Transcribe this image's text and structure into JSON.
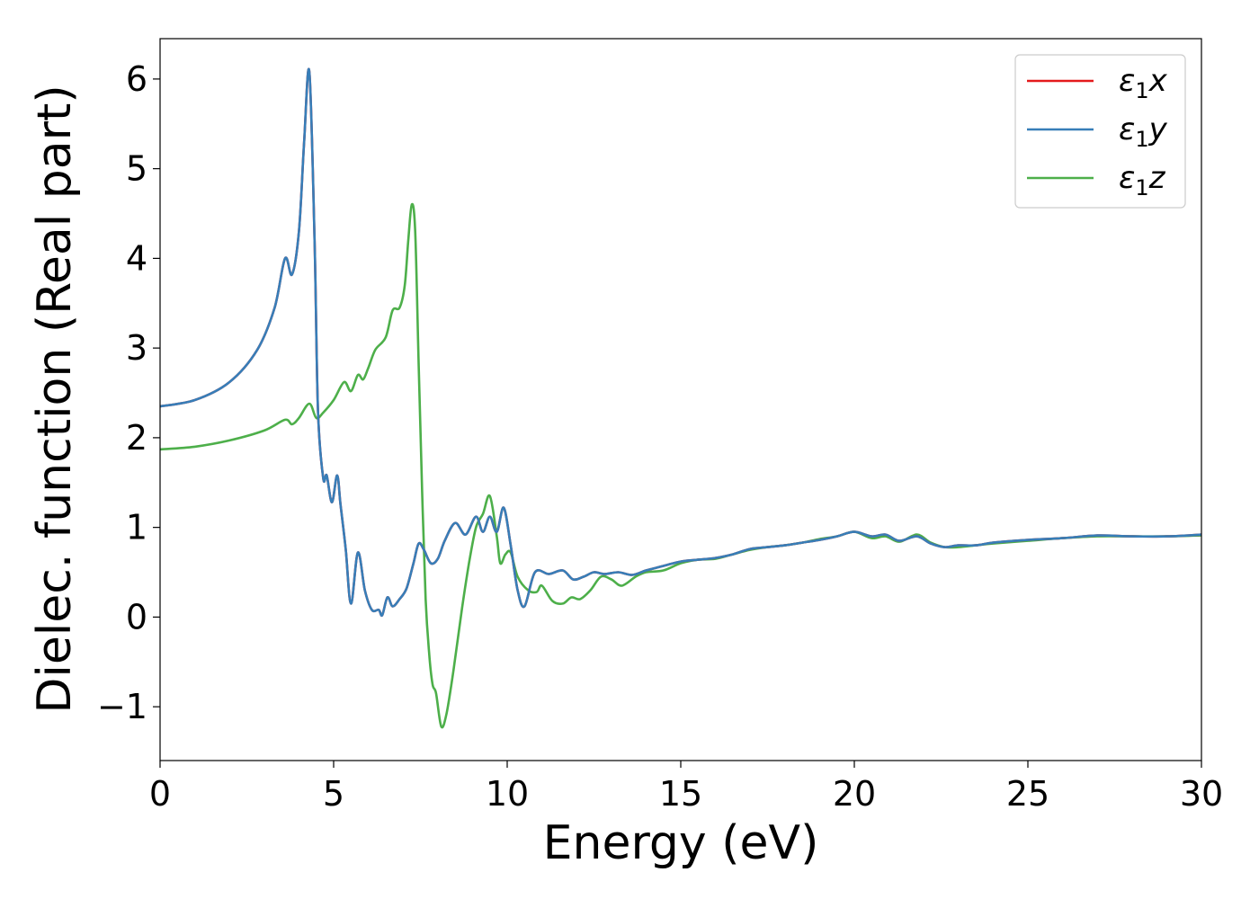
{
  "chart_data": {
    "type": "line",
    "title": "",
    "xlabel": "Energy (eV)",
    "ylabel": "Dielec. function (Real part)",
    "xlim": [
      0,
      30
    ],
    "ylim": [
      -1.6,
      6.45
    ],
    "xticks": [
      0,
      5,
      10,
      15,
      20,
      25,
      30
    ],
    "xtick_labels": [
      "0",
      "5",
      "10",
      "15",
      "20",
      "25",
      "30"
    ],
    "yticks": [
      -1,
      0,
      1,
      2,
      3,
      4,
      5,
      6
    ],
    "ytick_labels": [
      "−1",
      "0",
      "1",
      "2",
      "3",
      "4",
      "5",
      "6"
    ],
    "grid": false,
    "legend_position": "top-right",
    "series": [
      {
        "name": "ε₁x",
        "legend_main": "ε",
        "legend_sub": "1",
        "legend_tail": "x",
        "color": "#e41a1c",
        "points": [
          [
            0,
            2.35
          ],
          [
            1,
            2.42
          ],
          [
            2,
            2.62
          ],
          [
            2.8,
            2.98
          ],
          [
            3.3,
            3.45
          ],
          [
            3.6,
            4.0
          ],
          [
            3.8,
            3.82
          ],
          [
            4.0,
            4.3
          ],
          [
            4.15,
            5.3
          ],
          [
            4.3,
            6.08
          ],
          [
            4.45,
            4.2
          ],
          [
            4.55,
            2.3
          ],
          [
            4.7,
            1.55
          ],
          [
            4.8,
            1.58
          ],
          [
            4.95,
            1.28
          ],
          [
            5.1,
            1.58
          ],
          [
            5.2,
            1.25
          ],
          [
            5.35,
            0.75
          ],
          [
            5.5,
            0.15
          ],
          [
            5.7,
            0.72
          ],
          [
            5.9,
            0.3
          ],
          [
            6.1,
            0.08
          ],
          [
            6.3,
            0.08
          ],
          [
            6.4,
            0.02
          ],
          [
            6.55,
            0.22
          ],
          [
            6.7,
            0.12
          ],
          [
            6.9,
            0.2
          ],
          [
            7.1,
            0.32
          ],
          [
            7.3,
            0.6
          ],
          [
            7.45,
            0.82
          ],
          [
            7.6,
            0.75
          ],
          [
            7.8,
            0.6
          ],
          [
            8.0,
            0.65
          ],
          [
            8.2,
            0.85
          ],
          [
            8.5,
            1.05
          ],
          [
            8.8,
            0.92
          ],
          [
            9.1,
            1.12
          ],
          [
            9.3,
            0.95
          ],
          [
            9.5,
            1.12
          ],
          [
            9.7,
            0.95
          ],
          [
            9.9,
            1.22
          ],
          [
            10.1,
            0.8
          ],
          [
            10.3,
            0.3
          ],
          [
            10.5,
            0.12
          ],
          [
            10.8,
            0.5
          ],
          [
            11.2,
            0.48
          ],
          [
            11.6,
            0.52
          ],
          [
            11.9,
            0.42
          ],
          [
            12.2,
            0.45
          ],
          [
            12.5,
            0.5
          ],
          [
            12.8,
            0.48
          ],
          [
            13.2,
            0.5
          ],
          [
            13.6,
            0.47
          ],
          [
            14.0,
            0.52
          ],
          [
            14.5,
            0.57
          ],
          [
            15.0,
            0.62
          ],
          [
            15.5,
            0.64
          ],
          [
            16.0,
            0.66
          ],
          [
            16.5,
            0.7
          ],
          [
            17.0,
            0.76
          ],
          [
            17.5,
            0.78
          ],
          [
            18.0,
            0.8
          ],
          [
            18.5,
            0.83
          ],
          [
            19.0,
            0.86
          ],
          [
            19.5,
            0.9
          ],
          [
            20.0,
            0.95
          ],
          [
            20.5,
            0.9
          ],
          [
            20.9,
            0.92
          ],
          [
            21.3,
            0.85
          ],
          [
            21.8,
            0.9
          ],
          [
            22.2,
            0.82
          ],
          [
            22.6,
            0.78
          ],
          [
            23.0,
            0.8
          ],
          [
            23.5,
            0.8
          ],
          [
            24.0,
            0.83
          ],
          [
            25.0,
            0.86
          ],
          [
            26.0,
            0.88
          ],
          [
            27.0,
            0.91
          ],
          [
            28.0,
            0.9
          ],
          [
            29.0,
            0.9
          ],
          [
            30.0,
            0.92
          ]
        ]
      },
      {
        "name": "ε₁y",
        "legend_main": "ε",
        "legend_sub": "1",
        "legend_tail": "y",
        "color": "#377eb8",
        "points": [
          [
            0,
            2.35
          ],
          [
            1,
            2.42
          ],
          [
            2,
            2.62
          ],
          [
            2.8,
            2.98
          ],
          [
            3.3,
            3.45
          ],
          [
            3.6,
            4.0
          ],
          [
            3.8,
            3.82
          ],
          [
            4.0,
            4.3
          ],
          [
            4.15,
            5.3
          ],
          [
            4.3,
            6.08
          ],
          [
            4.45,
            4.2
          ],
          [
            4.55,
            2.3
          ],
          [
            4.7,
            1.55
          ],
          [
            4.8,
            1.58
          ],
          [
            4.95,
            1.28
          ],
          [
            5.1,
            1.58
          ],
          [
            5.2,
            1.25
          ],
          [
            5.35,
            0.75
          ],
          [
            5.5,
            0.15
          ],
          [
            5.7,
            0.72
          ],
          [
            5.9,
            0.3
          ],
          [
            6.1,
            0.08
          ],
          [
            6.3,
            0.08
          ],
          [
            6.4,
            0.02
          ],
          [
            6.55,
            0.22
          ],
          [
            6.7,
            0.12
          ],
          [
            6.9,
            0.2
          ],
          [
            7.1,
            0.32
          ],
          [
            7.3,
            0.6
          ],
          [
            7.45,
            0.82
          ],
          [
            7.6,
            0.75
          ],
          [
            7.8,
            0.6
          ],
          [
            8.0,
            0.65
          ],
          [
            8.2,
            0.85
          ],
          [
            8.5,
            1.05
          ],
          [
            8.8,
            0.92
          ],
          [
            9.1,
            1.12
          ],
          [
            9.3,
            0.95
          ],
          [
            9.5,
            1.12
          ],
          [
            9.7,
            0.95
          ],
          [
            9.9,
            1.22
          ],
          [
            10.1,
            0.8
          ],
          [
            10.3,
            0.3
          ],
          [
            10.5,
            0.12
          ],
          [
            10.8,
            0.5
          ],
          [
            11.2,
            0.48
          ],
          [
            11.6,
            0.52
          ],
          [
            11.9,
            0.42
          ],
          [
            12.2,
            0.45
          ],
          [
            12.5,
            0.5
          ],
          [
            12.8,
            0.48
          ],
          [
            13.2,
            0.5
          ],
          [
            13.6,
            0.47
          ],
          [
            14.0,
            0.52
          ],
          [
            14.5,
            0.57
          ],
          [
            15.0,
            0.62
          ],
          [
            15.5,
            0.64
          ],
          [
            16.0,
            0.66
          ],
          [
            16.5,
            0.7
          ],
          [
            17.0,
            0.76
          ],
          [
            17.5,
            0.78
          ],
          [
            18.0,
            0.8
          ],
          [
            18.5,
            0.83
          ],
          [
            19.0,
            0.86
          ],
          [
            19.5,
            0.9
          ],
          [
            20.0,
            0.95
          ],
          [
            20.5,
            0.9
          ],
          [
            20.9,
            0.92
          ],
          [
            21.3,
            0.85
          ],
          [
            21.8,
            0.9
          ],
          [
            22.2,
            0.82
          ],
          [
            22.6,
            0.78
          ],
          [
            23.0,
            0.8
          ],
          [
            23.5,
            0.8
          ],
          [
            24.0,
            0.83
          ],
          [
            25.0,
            0.86
          ],
          [
            26.0,
            0.88
          ],
          [
            27.0,
            0.91
          ],
          [
            28.0,
            0.9
          ],
          [
            29.0,
            0.9
          ],
          [
            30.0,
            0.92
          ]
        ]
      },
      {
        "name": "ε₁z",
        "legend_main": "ε",
        "legend_sub": "1",
        "legend_tail": "z",
        "color": "#4daf4a",
        "points": [
          [
            0,
            1.87
          ],
          [
            1,
            1.9
          ],
          [
            2,
            1.97
          ],
          [
            3,
            2.08
          ],
          [
            3.6,
            2.2
          ],
          [
            3.8,
            2.15
          ],
          [
            4.0,
            2.22
          ],
          [
            4.3,
            2.38
          ],
          [
            4.5,
            2.22
          ],
          [
            4.7,
            2.28
          ],
          [
            5.0,
            2.42
          ],
          [
            5.3,
            2.62
          ],
          [
            5.5,
            2.52
          ],
          [
            5.7,
            2.7
          ],
          [
            5.85,
            2.65
          ],
          [
            6.0,
            2.78
          ],
          [
            6.2,
            2.98
          ],
          [
            6.5,
            3.12
          ],
          [
            6.7,
            3.42
          ],
          [
            6.9,
            3.45
          ],
          [
            7.05,
            3.7
          ],
          [
            7.15,
            4.2
          ],
          [
            7.25,
            4.6
          ],
          [
            7.35,
            4.3
          ],
          [
            7.45,
            2.8
          ],
          [
            7.55,
            1.4
          ],
          [
            7.65,
            0.2
          ],
          [
            7.75,
            -0.4
          ],
          [
            7.85,
            -0.75
          ],
          [
            7.95,
            -0.85
          ],
          [
            8.1,
            -1.22
          ],
          [
            8.25,
            -1.08
          ],
          [
            8.45,
            -0.6
          ],
          [
            8.7,
            0.1
          ],
          [
            8.9,
            0.6
          ],
          [
            9.1,
            1.0
          ],
          [
            9.3,
            1.15
          ],
          [
            9.5,
            1.35
          ],
          [
            9.7,
            0.9
          ],
          [
            9.8,
            0.6
          ],
          [
            9.95,
            0.7
          ],
          [
            10.1,
            0.72
          ],
          [
            10.3,
            0.45
          ],
          [
            10.6,
            0.3
          ],
          [
            10.85,
            0.28
          ],
          [
            11.0,
            0.35
          ],
          [
            11.3,
            0.18
          ],
          [
            11.6,
            0.15
          ],
          [
            11.85,
            0.22
          ],
          [
            12.1,
            0.2
          ],
          [
            12.4,
            0.3
          ],
          [
            12.7,
            0.45
          ],
          [
            13.0,
            0.42
          ],
          [
            13.3,
            0.35
          ],
          [
            13.7,
            0.45
          ],
          [
            14.0,
            0.5
          ],
          [
            14.5,
            0.52
          ],
          [
            15.0,
            0.6
          ],
          [
            15.5,
            0.64
          ],
          [
            16.0,
            0.65
          ],
          [
            16.5,
            0.7
          ],
          [
            17.0,
            0.75
          ],
          [
            17.5,
            0.78
          ],
          [
            18.0,
            0.8
          ],
          [
            18.5,
            0.83
          ],
          [
            19.0,
            0.87
          ],
          [
            19.5,
            0.9
          ],
          [
            20.0,
            0.95
          ],
          [
            20.5,
            0.88
          ],
          [
            20.9,
            0.9
          ],
          [
            21.3,
            0.84
          ],
          [
            21.8,
            0.92
          ],
          [
            22.2,
            0.83
          ],
          [
            22.6,
            0.78
          ],
          [
            23.0,
            0.78
          ],
          [
            23.5,
            0.8
          ],
          [
            24.0,
            0.82
          ],
          [
            25.0,
            0.85
          ],
          [
            26.0,
            0.88
          ],
          [
            27.0,
            0.9
          ],
          [
            28.0,
            0.9
          ],
          [
            29.0,
            0.9
          ],
          [
            30.0,
            0.91
          ]
        ]
      }
    ]
  }
}
